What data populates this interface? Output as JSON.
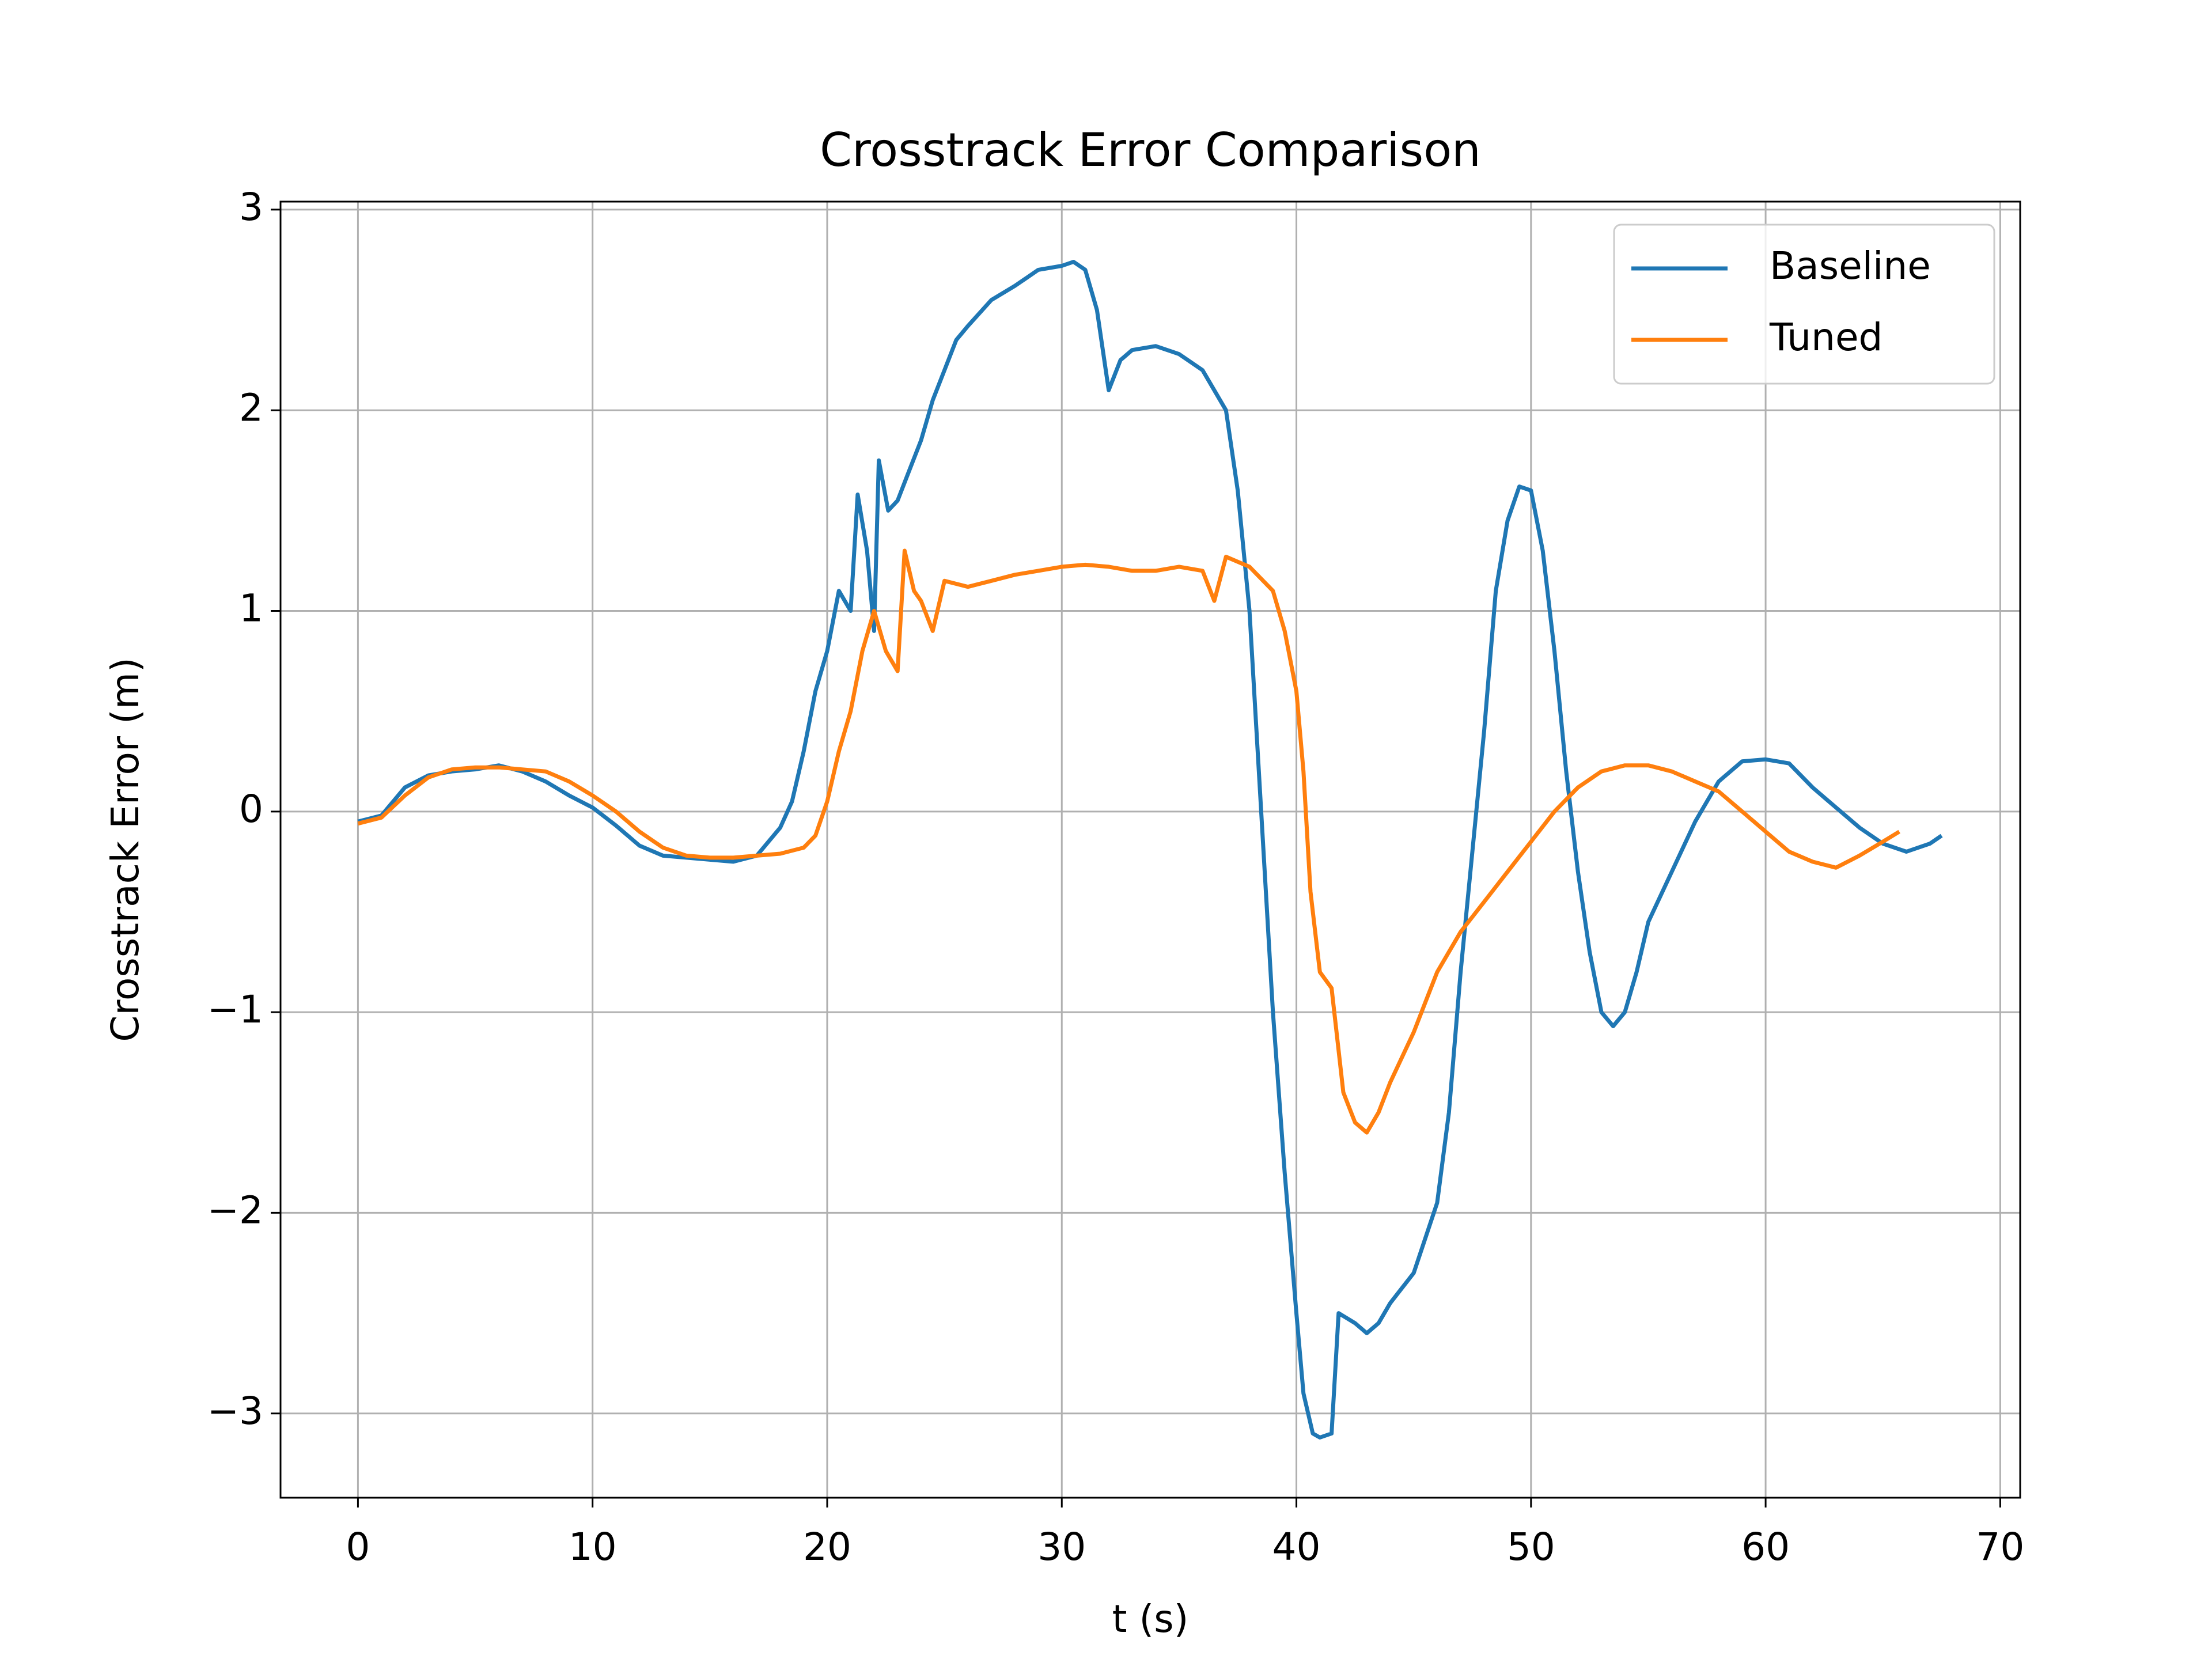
{
  "chart_data": {
    "type": "line",
    "title": "Crosstrack Error Comparison",
    "xlabel": "t (s)",
    "ylabel": "Crosstrack Error (m)",
    "xlim": [
      -3.3,
      70.85
    ],
    "ylim": [
      -3.42,
      3.04
    ],
    "xticks": [
      0,
      10,
      20,
      30,
      40,
      50,
      60,
      70
    ],
    "yticks": [
      {
        "value": -3,
        "label": "−3"
      },
      {
        "value": -2,
        "label": "−2"
      },
      {
        "value": -1,
        "label": "−1"
      },
      0,
      1,
      2,
      3
    ],
    "grid": true,
    "legend": "upper right",
    "series": [
      {
        "name": "Baseline",
        "color": "#1f77b4",
        "x": [
          0,
          1,
          2,
          3,
          4,
          5,
          6,
          7,
          8,
          9,
          10,
          11,
          12,
          13,
          14,
          15,
          16,
          17,
          18,
          18.5,
          19,
          19.5,
          20,
          20.5,
          21,
          21.3,
          21.7,
          22,
          22.2,
          22.6,
          23,
          23.5,
          24,
          24.5,
          25,
          25.5,
          26,
          27,
          28,
          29,
          30,
          30.5,
          31,
          31.5,
          32,
          32.5,
          33,
          34,
          35,
          36,
          37,
          37.5,
          38,
          38.5,
          39,
          39.5,
          40,
          40.3,
          40.7,
          41,
          41.5,
          41.8,
          42.5,
          43,
          43.5,
          44,
          45,
          46,
          46.5,
          47,
          47.5,
          48,
          48.5,
          49,
          49.5,
          50,
          50.5,
          51,
          51.5,
          52,
          52.5,
          53,
          53.5,
          54,
          54.5,
          55,
          56,
          57,
          58,
          59,
          60,
          61,
          62,
          63,
          64,
          65,
          66,
          67,
          67.5
        ],
        "values": [
          -0.05,
          -0.02,
          0.12,
          0.18,
          0.2,
          0.21,
          0.23,
          0.2,
          0.15,
          0.08,
          0.02,
          -0.07,
          -0.17,
          -0.22,
          -0.23,
          -0.24,
          -0.25,
          -0.22,
          -0.08,
          0.05,
          0.3,
          0.6,
          0.8,
          1.1,
          1.0,
          1.58,
          1.3,
          0.9,
          1.75,
          1.5,
          1.55,
          1.7,
          1.85,
          2.05,
          2.2,
          2.35,
          2.42,
          2.55,
          2.62,
          2.7,
          2.72,
          2.74,
          2.7,
          2.5,
          2.1,
          2.25,
          2.3,
          2.32,
          2.28,
          2.2,
          2.0,
          1.6,
          1.0,
          0.0,
          -1.0,
          -1.8,
          -2.5,
          -2.9,
          -3.1,
          -3.12,
          -3.1,
          -2.5,
          -2.55,
          -2.6,
          -2.55,
          -2.45,
          -2.3,
          -1.95,
          -1.5,
          -0.8,
          -0.2,
          0.4,
          1.1,
          1.45,
          1.62,
          1.6,
          1.3,
          0.8,
          0.2,
          -0.3,
          -0.7,
          -1.0,
          -1.07,
          -1.0,
          -0.8,
          -0.55,
          -0.3,
          -0.05,
          0.15,
          0.25,
          0.26,
          0.24,
          0.12,
          0.02,
          -0.08,
          -0.16,
          -0.2,
          -0.16,
          -0.12
        ]
      },
      {
        "name": "Tuned",
        "color": "#ff7f0e",
        "x": [
          0,
          1,
          2,
          3,
          4,
          5,
          6,
          7,
          8,
          9,
          10,
          11,
          12,
          13,
          14,
          15,
          16,
          17,
          18,
          19,
          19.5,
          20,
          20.5,
          21,
          21.5,
          22,
          22.5,
          23,
          23.3,
          23.7,
          24,
          24.5,
          25,
          26,
          27,
          28,
          29,
          30,
          31,
          32,
          33,
          34,
          35,
          36,
          36.5,
          37,
          38,
          39,
          39.5,
          40,
          40.3,
          40.6,
          41,
          41.5,
          42,
          42.5,
          43,
          43.5,
          44,
          45,
          45.5,
          46,
          47,
          48,
          49,
          50,
          51,
          52,
          53,
          54,
          55,
          56,
          57,
          58,
          59,
          60,
          61,
          62,
          63,
          64,
          65,
          65.7
        ],
        "values": [
          -0.06,
          -0.03,
          0.08,
          0.17,
          0.21,
          0.22,
          0.22,
          0.21,
          0.2,
          0.15,
          0.08,
          0.0,
          -0.1,
          -0.18,
          -0.22,
          -0.23,
          -0.23,
          -0.22,
          -0.21,
          -0.18,
          -0.12,
          0.05,
          0.3,
          0.5,
          0.8,
          1.0,
          0.8,
          0.7,
          1.3,
          1.1,
          1.05,
          0.9,
          1.15,
          1.12,
          1.15,
          1.18,
          1.2,
          1.22,
          1.23,
          1.22,
          1.2,
          1.2,
          1.22,
          1.2,
          1.05,
          1.27,
          1.22,
          1.1,
          0.9,
          0.6,
          0.2,
          -0.4,
          -0.8,
          -0.88,
          -1.4,
          -1.55,
          -1.6,
          -1.5,
          -1.35,
          -1.1,
          -0.95,
          -0.8,
          -0.6,
          -0.45,
          -0.3,
          -0.15,
          0.0,
          0.12,
          0.2,
          0.23,
          0.23,
          0.2,
          0.15,
          0.1,
          0.0,
          -0.1,
          -0.2,
          -0.25,
          -0.28,
          -0.22,
          -0.15,
          -0.1
        ]
      }
    ]
  }
}
